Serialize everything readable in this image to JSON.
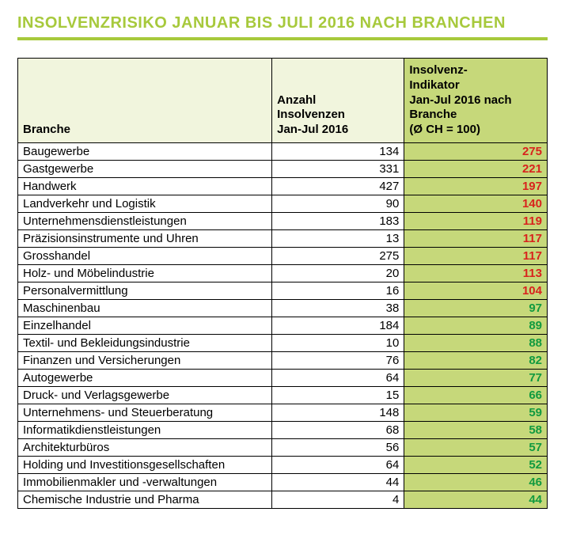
{
  "title": "INSOLVENZRISIKO JANUAR BIS JULI 2016 NACH BRANCHEN",
  "colors": {
    "accent": "#a7c93c",
    "header_bg_light": "#f1f5dd",
    "header_bg_dark": "#c6d87a",
    "risk_high": "#d8231d",
    "risk_low": "#119a3f",
    "border": "#000000",
    "text": "#000000"
  },
  "table": {
    "headers": {
      "branche": "Branche",
      "anzahl": "Anzahl Insolvenzen Jan-Jul 2016",
      "indikator": "Insolvenz-Indikator Jan-Jul 2016 nach Branche (Ø CH = 100)"
    },
    "rows": [
      {
        "branche": "Baugewerbe",
        "anzahl": 134,
        "indikator": 275,
        "risk": "high"
      },
      {
        "branche": "Gastgewerbe",
        "anzahl": 331,
        "indikator": 221,
        "risk": "high"
      },
      {
        "branche": "Handwerk",
        "anzahl": 427,
        "indikator": 197,
        "risk": "high"
      },
      {
        "branche": "Landverkehr und Logistik",
        "anzahl": 90,
        "indikator": 140,
        "risk": "high"
      },
      {
        "branche": "Unternehmensdienstleistungen",
        "anzahl": 183,
        "indikator": 119,
        "risk": "high"
      },
      {
        "branche": "Präzisionsinstrumente und Uhren",
        "anzahl": 13,
        "indikator": 117,
        "risk": "high"
      },
      {
        "branche": "Grosshandel",
        "anzahl": 275,
        "indikator": 117,
        "risk": "high"
      },
      {
        "branche": "Holz- und Möbelindustrie",
        "anzahl": 20,
        "indikator": 113,
        "risk": "high"
      },
      {
        "branche": "Personalvermittlung",
        "anzahl": 16,
        "indikator": 104,
        "risk": "high"
      },
      {
        "branche": "Maschinenbau",
        "anzahl": 38,
        "indikator": 97,
        "risk": "low"
      },
      {
        "branche": "Einzelhandel",
        "anzahl": 184,
        "indikator": 89,
        "risk": "low"
      },
      {
        "branche": "Textil- und Bekleidungsindustrie",
        "anzahl": 10,
        "indikator": 88,
        "risk": "low"
      },
      {
        "branche": "Finanzen und Versicherungen",
        "anzahl": 76,
        "indikator": 82,
        "risk": "low"
      },
      {
        "branche": "Autogewerbe",
        "anzahl": 64,
        "indikator": 77,
        "risk": "low"
      },
      {
        "branche": "Druck- und Verlagsgewerbe",
        "anzahl": 15,
        "indikator": 66,
        "risk": "low"
      },
      {
        "branche": "Unternehmens- und Steuerberatung",
        "anzahl": 148,
        "indikator": 59,
        "risk": "low"
      },
      {
        "branche": "Informatikdienstleistungen",
        "anzahl": 68,
        "indikator": 58,
        "risk": "low"
      },
      {
        "branche": "Architekturbüros",
        "anzahl": 56,
        "indikator": 57,
        "risk": "low"
      },
      {
        "branche": "Holding und Investitionsgesellschaften",
        "anzahl": 64,
        "indikator": 52,
        "risk": "low"
      },
      {
        "branche": "Immobilienmakler und -verwaltungen",
        "anzahl": 44,
        "indikator": 46,
        "risk": "low"
      },
      {
        "branche": "Chemische Industrie und Pharma",
        "anzahl": 4,
        "indikator": 44,
        "risk": "low"
      }
    ]
  }
}
